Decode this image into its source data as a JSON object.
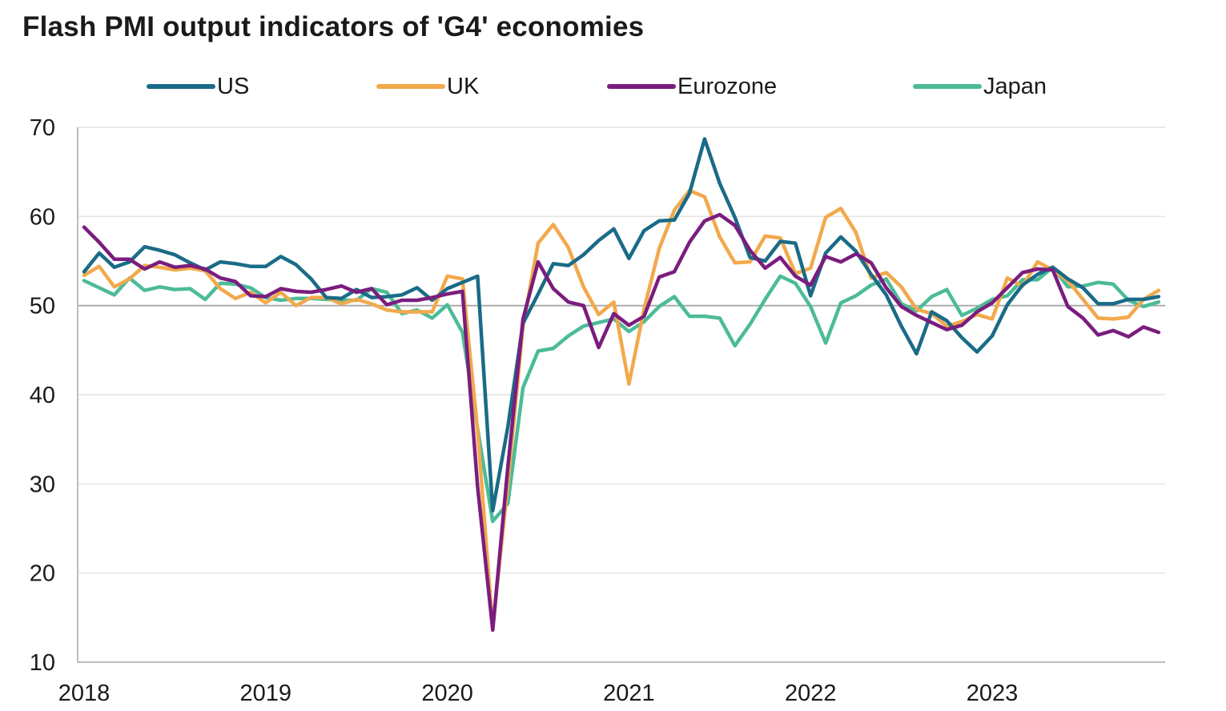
{
  "chart_data": {
    "type": "line",
    "title": "Flash PMI output indicators of 'G4' economies",
    "xlabel": "",
    "ylabel": "",
    "ylim": [
      10,
      70
    ],
    "yticks": [
      10,
      20,
      30,
      40,
      50,
      60,
      70
    ],
    "xticks": [
      2018,
      2019,
      2020,
      2021,
      2022,
      2023
    ],
    "x_period": "monthly, Jan 2018 to Dec 2023",
    "reference_line": 50,
    "legend_position": "top",
    "series": [
      {
        "name": "US",
        "color": "#1a6b87",
        "values": [
          53.8,
          55.9,
          54.3,
          54.9,
          56.6,
          56.2,
          55.7,
          54.8,
          54.0,
          54.9,
          54.7,
          54.4,
          54.4,
          55.5,
          54.6,
          53.0,
          50.9,
          50.8,
          51.8,
          50.9,
          51.0,
          51.2,
          52.0,
          50.6,
          51.9,
          52.6,
          53.3,
          27.0,
          36.4,
          48.0,
          51.3,
          54.7,
          54.5,
          55.7,
          57.3,
          58.6,
          55.3,
          58.4,
          59.5,
          59.6,
          62.6,
          68.7,
          63.7,
          59.9,
          55.4,
          55.0,
          57.2,
          57.0,
          51.1,
          55.9,
          57.7,
          56.1,
          53.5,
          51.2,
          47.7,
          44.6,
          49.3,
          48.3,
          46.4,
          44.8,
          46.6,
          50.1,
          52.3,
          53.5,
          54.3,
          53.0,
          52.0,
          50.2,
          50.2,
          50.7,
          50.7,
          51.0
        ]
      },
      {
        "name": "UK",
        "color": "#f2a94c",
        "values": [
          53.4,
          54.4,
          52.1,
          53.0,
          54.5,
          54.3,
          54.0,
          54.2,
          53.9,
          51.9,
          50.8,
          51.5,
          50.3,
          51.5,
          50.0,
          50.9,
          50.9,
          50.2,
          50.7,
          50.2,
          49.5,
          49.3,
          49.3,
          49.3,
          53.3,
          53.0,
          36.0,
          13.8,
          30.0,
          47.7,
          57.0,
          59.1,
          56.5,
          52.1,
          49.0,
          50.4,
          41.2,
          49.6,
          56.4,
          60.7,
          62.9,
          62.2,
          57.7,
          54.8,
          54.9,
          57.8,
          57.6,
          53.6,
          54.2,
          59.9,
          60.9,
          58.2,
          53.1,
          53.7,
          52.1,
          49.6,
          49.1,
          47.7,
          48.2,
          49.0,
          48.5,
          53.1,
          52.2,
          54.9,
          54.0,
          52.8,
          50.7,
          48.6,
          48.5,
          48.7,
          50.7,
          51.7
        ]
      },
      {
        "name": "Eurozone",
        "color": "#7a1d7e",
        "values": [
          58.8,
          57.1,
          55.2,
          55.2,
          54.1,
          54.9,
          54.3,
          54.5,
          54.1,
          53.1,
          52.7,
          51.1,
          51.0,
          51.9,
          51.6,
          51.5,
          51.8,
          52.2,
          51.5,
          51.9,
          50.1,
          50.6,
          50.6,
          50.9,
          51.3,
          51.6,
          29.7,
          13.6,
          31.9,
          48.5,
          54.9,
          51.9,
          50.4,
          50.0,
          45.3,
          49.1,
          47.8,
          48.8,
          53.2,
          53.8,
          57.1,
          59.5,
          60.2,
          59.0,
          56.2,
          54.2,
          55.4,
          53.3,
          52.3,
          55.5,
          54.9,
          55.8,
          54.8,
          52.0,
          49.9,
          48.9,
          48.1,
          47.3,
          47.8,
          49.3,
          50.3,
          52.0,
          53.7,
          54.1,
          54.0,
          49.9,
          48.6,
          46.7,
          47.2,
          46.5,
          47.6,
          47.0
        ]
      },
      {
        "name": "Japan",
        "color": "#4cbb98",
        "values": [
          52.8,
          52.0,
          51.2,
          53.1,
          51.7,
          52.1,
          51.8,
          51.9,
          50.7,
          52.5,
          52.4,
          52.0,
          50.9,
          50.6,
          50.8,
          50.8,
          50.7,
          50.6,
          50.6,
          51.9,
          51.5,
          49.1,
          49.5,
          48.6,
          50.1,
          47.0,
          36.2,
          25.8,
          27.8,
          40.8,
          44.9,
          45.2,
          46.6,
          47.7,
          48.1,
          48.5,
          47.1,
          48.2,
          49.9,
          51.0,
          48.8,
          48.8,
          48.6,
          45.5,
          47.9,
          50.7,
          53.3,
          52.5,
          49.9,
          45.8,
          50.3,
          51.1,
          52.3,
          53.0,
          50.2,
          49.4,
          51.0,
          51.8,
          48.9,
          49.7,
          50.7,
          51.1,
          52.9,
          52.9,
          54.3,
          52.1,
          52.2,
          52.6,
          52.4,
          50.6,
          49.9,
          50.4
        ]
      }
    ]
  }
}
